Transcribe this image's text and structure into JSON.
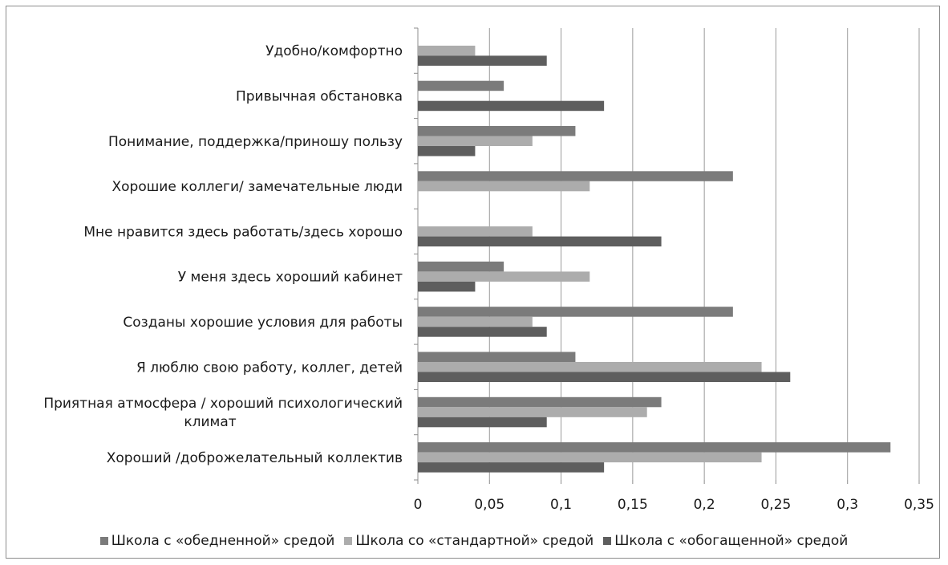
{
  "chart_data": {
    "type": "bar",
    "orientation": "horizontal",
    "title": "",
    "xlabel": "",
    "ylabel": "",
    "xlim": [
      0,
      0.35
    ],
    "x_ticks": [
      "0",
      "0,05",
      "0,1",
      "0,15",
      "0,2",
      "0,25",
      "0,3",
      "0,35"
    ],
    "grid": "vertical",
    "legend_position": "bottom",
    "categories": [
      "Удобно/комфортно",
      "Привычная обстановка",
      "Понимание, поддержка/приношу пользу",
      "Хорошие коллеги/ замечательные люди",
      "Мне нравится здесь работать/здесь хорошо",
      "У меня здесь хороший кабинет",
      "Созданы хорошие условия для работы",
      "Я люблю свою работу, коллег, детей",
      "Приятная атмосфера / хороший психологический климат",
      "Хороший /доброжелательный коллектив"
    ],
    "category_lines": [
      [
        "Удобно/комфортно"
      ],
      [
        "Привычная обстановка"
      ],
      [
        "Понимание, поддержка/приношу пользу"
      ],
      [
        "Хорошие коллеги/ замечательные люди"
      ],
      [
        "Мне нравится здесь работать/здесь хорошо"
      ],
      [
        "У меня здесь хороший кабинет"
      ],
      [
        "Созданы хорошие условия для работы"
      ],
      [
        "Я люблю свою работу, коллег, детей"
      ],
      [
        "Приятная атмосфера / хороший психологический",
        "климат"
      ],
      [
        "Хороший /доброжелательный коллектив"
      ]
    ],
    "series": [
      {
        "name": "Школа с «обедненной» средой",
        "color": "#7b7b7b",
        "values": [
          0,
          0.06,
          0.11,
          0.22,
          0,
          0.06,
          0.22,
          0.11,
          0.17,
          0.33
        ]
      },
      {
        "name": "Школа со «стандартной» средой",
        "color": "#acacac",
        "values": [
          0.04,
          0,
          0.08,
          0.12,
          0.08,
          0.12,
          0.08,
          0.24,
          0.16,
          0.24
        ]
      },
      {
        "name": "Школа с «обогащенной» средой",
        "color": "#5e5e5e",
        "values": [
          0.09,
          0.13,
          0.04,
          0,
          0.17,
          0.04,
          0.09,
          0.26,
          0.09,
          0.13
        ]
      }
    ]
  }
}
